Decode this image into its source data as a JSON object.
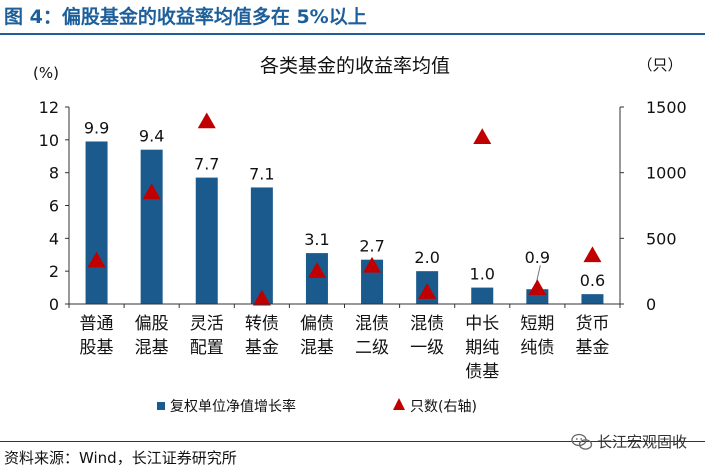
{
  "figure": {
    "title": "图 4：偏股基金的收益率均值多在 5%以上",
    "source": "资料来源：Wind，长江证券研究所",
    "watermark": "长江宏观固收",
    "watermark_icon": "wechat-icon"
  },
  "chart_data": {
    "type": "bar",
    "title": "各类基金的收益率均值",
    "left_axis": {
      "unit_label": "(%)",
      "ylim": [
        0,
        12
      ],
      "ticks": [
        0,
        2,
        4,
        6,
        8,
        10,
        12
      ]
    },
    "right_axis": {
      "unit_label": "（只）",
      "ylim": [
        0,
        1500
      ],
      "ticks": [
        0,
        500,
        1000,
        1500
      ]
    },
    "categories": [
      [
        "普通",
        "股基"
      ],
      [
        "偏股",
        "混基"
      ],
      [
        "灵活",
        "配置"
      ],
      [
        "转债",
        "基金"
      ],
      [
        "偏债",
        "混基"
      ],
      [
        "混债",
        "二级"
      ],
      [
        "混债",
        "一级"
      ],
      [
        "中长",
        "期纯",
        "债基"
      ],
      [
        "短期",
        "纯债"
      ],
      [
        "货币",
        "基金"
      ]
    ],
    "series": [
      {
        "name": "复权单位净值增长率",
        "kind": "bar",
        "axis": "left",
        "color": "#1b5a8c",
        "values": [
          9.9,
          9.4,
          7.7,
          7.1,
          3.1,
          2.7,
          2.0,
          1.0,
          0.9,
          0.6
        ],
        "labels": [
          "9.9",
          "9.4",
          "7.7",
          "7.1",
          "3.1",
          "2.7",
          "2.0",
          "1.0",
          "0.9",
          "0.6"
        ]
      },
      {
        "name": "只数(右轴)",
        "kind": "marker",
        "marker": "triangle",
        "axis": "right",
        "color": "#c00000",
        "values": [
          330,
          850,
          1390,
          40,
          250,
          290,
          90,
          1270,
          120,
          370
        ]
      }
    ],
    "grid": false,
    "legend_position": "bottom"
  }
}
